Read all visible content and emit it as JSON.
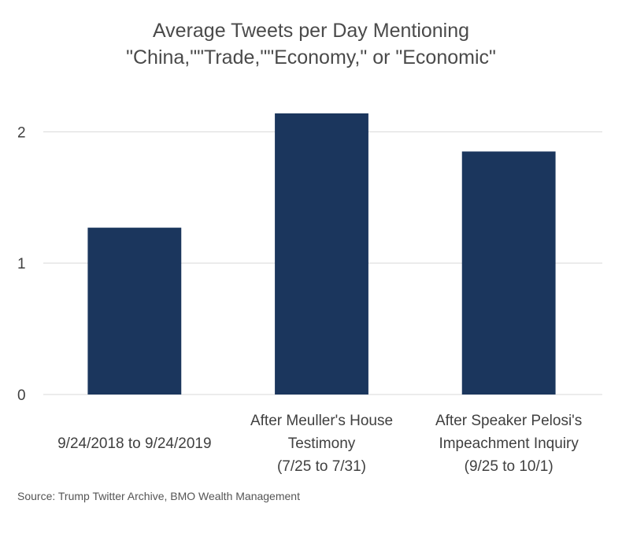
{
  "chart_data": {
    "type": "bar",
    "title": "Average Tweets per Day Mentioning\n\"China,\"\"Trade,\"\"Economy,\"  or \"Economic\"",
    "categories": [
      "9/24/2018 to 9/24/2019",
      "After Meuller's House\nTestimony\n(7/25 to 7/31)",
      "After Speaker Pelosi's\nImpeachment Inquiry\n(9/25 to 10/1)"
    ],
    "values": [
      1.27,
      2.14,
      1.85
    ],
    "color": "#1b365d",
    "ylim": [
      0,
      2.2
    ],
    "yticks": [
      0,
      1,
      2
    ],
    "grid": true,
    "source": "Source: Trump Twitter Archive, BMO Wealth Management"
  }
}
